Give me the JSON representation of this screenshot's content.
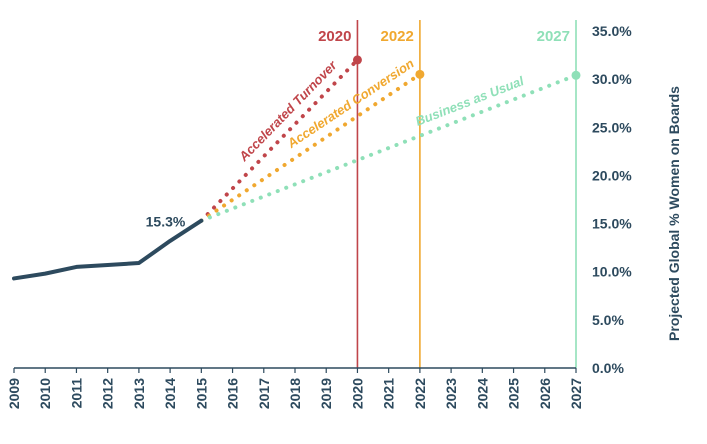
{
  "chart_data": {
    "type": "line",
    "title": "",
    "xlabel": "",
    "ylabel": "Projected Global % Women on Boards",
    "x_categories": [
      "2009",
      "2010",
      "2011",
      "2012",
      "2013",
      "2014",
      "2015",
      "2016",
      "2017",
      "2018",
      "2019",
      "2020",
      "2021",
      "2022",
      "2023",
      "2024",
      "2025",
      "2026",
      "2027"
    ],
    "ylim": [
      0,
      35
    ],
    "y_ticks": [
      "0.0%",
      "5.0%",
      "10.0%",
      "15.0%",
      "20.0%",
      "25.0%",
      "30.0%",
      "35.0%"
    ],
    "y_axis_side": "right",
    "grid": false,
    "historical": {
      "x": [
        2009,
        2010,
        2011,
        2012,
        2013,
        2014,
        2015
      ],
      "y": [
        9.3,
        9.8,
        10.5,
        10.7,
        10.9,
        13.2,
        15.3
      ],
      "color": "#2d4a5e"
    },
    "annotation": {
      "text": "15.3%",
      "x": 2015,
      "y": 15.3
    },
    "series": [
      {
        "name": "Accelerated Turnover",
        "x": [
          2015,
          2020
        ],
        "y": [
          15.3,
          32.0
        ],
        "color": "#c0454a",
        "style": "dotted"
      },
      {
        "name": "Accelerated Conversion",
        "x": [
          2015,
          2022
        ],
        "y": [
          15.3,
          30.5
        ],
        "color": "#f0a830",
        "style": "dotted"
      },
      {
        "name": "Business as Usual",
        "x": [
          2015,
          2027
        ],
        "y": [
          15.3,
          30.4
        ],
        "color": "#8fe0b8",
        "style": "dotted"
      }
    ],
    "markers": [
      {
        "label": "2020",
        "x": 2020,
        "color": "#c0454a"
      },
      {
        "label": "2022",
        "x": 2022,
        "color": "#f0a830"
      },
      {
        "label": "2027",
        "x": 2027,
        "color": "#8fe0b8"
      }
    ]
  }
}
